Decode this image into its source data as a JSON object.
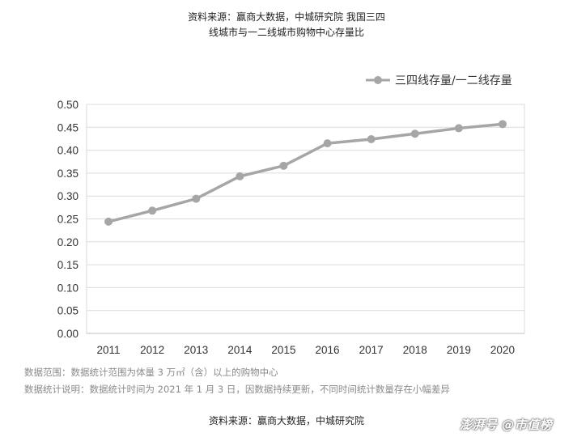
{
  "header": {
    "title_line1": "资料来源：赢商大数据，中城研究院 我国三四",
    "title_line2": "线城市与一二线城市购物中心存量比"
  },
  "chart_data": {
    "type": "line",
    "categories": [
      "2011",
      "2012",
      "2013",
      "2014",
      "2015",
      "2016",
      "2017",
      "2018",
      "2019",
      "2020"
    ],
    "series": [
      {
        "name": "三四线存量/一二线存量",
        "values": [
          0.244,
          0.268,
          0.294,
          0.343,
          0.366,
          0.415,
          0.424,
          0.436,
          0.448,
          0.457
        ],
        "color": "#a6a6a6"
      }
    ],
    "ylim": [
      0,
      0.5
    ],
    "yticks": [
      "0.00",
      "0.05",
      "0.10",
      "0.15",
      "0.20",
      "0.25",
      "0.30",
      "0.35",
      "0.40",
      "0.45",
      "0.50"
    ],
    "legend_position": "top-right",
    "grid": true,
    "colors": {
      "series": "#a6a6a6",
      "grid": "#dcdcdc",
      "axis": "#bfbfbf"
    }
  },
  "notes": {
    "scope": "数据范围：数据统计范围为体量 3 万㎡（含）以上的购物中心",
    "explanation": "数据统计说明：数据统计时间为 2021 年 1 月 3 日，因数据持续更新，不同时间统计数量存在小幅差异"
  },
  "footer": {
    "source": "资料来源：赢商大数据，中城研究院"
  },
  "watermark": {
    "text": "澎湃号 @市值榜"
  }
}
